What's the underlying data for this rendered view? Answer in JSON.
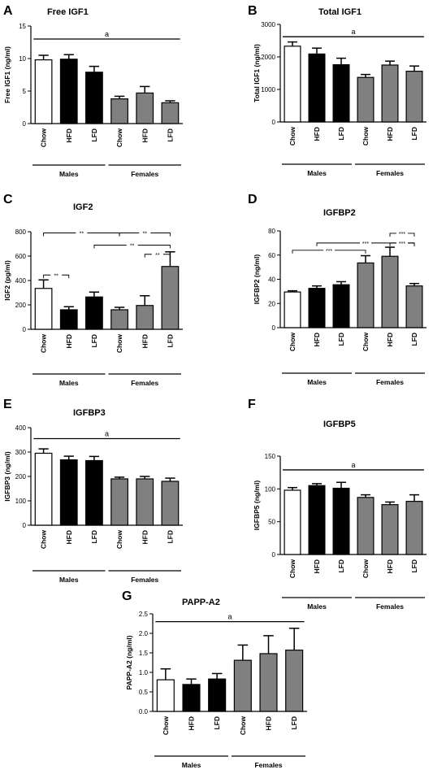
{
  "chart_data": [
    {
      "type": "bar",
      "panel": "A",
      "title": "Free IGF1",
      "ylabel": "Free IGF1 (ng/ml)",
      "categories": [
        "Chow",
        "HFD",
        "LFD",
        "Chow",
        "HFD",
        "LFD"
      ],
      "groups": [
        {
          "label": "Males",
          "indices": [
            0,
            1,
            2
          ]
        },
        {
          "label": "Females",
          "indices": [
            3,
            4,
            5
          ]
        }
      ],
      "values": [
        9.8,
        9.9,
        7.9,
        3.8,
        4.7,
        3.2
      ],
      "errors": [
        0.7,
        0.7,
        0.9,
        0.4,
        1.0,
        0.3
      ],
      "fills": [
        "#ffffff",
        "#000000",
        "#000000",
        "#808080",
        "#808080",
        "#808080"
      ],
      "ylim": [
        0,
        15
      ],
      "yticks": [
        0,
        5,
        10,
        15
      ],
      "significance": [
        {
          "from": 0,
          "to": 5,
          "y": 13.0,
          "label": "a",
          "style": "line"
        }
      ]
    },
    {
      "type": "bar",
      "panel": "B",
      "title": "Total IGF1",
      "ylabel": "Total IGF1 (ng/ml)",
      "categories": [
        "Chow",
        "HFD",
        "LFD",
        "Chow",
        "HFD",
        "LFD"
      ],
      "groups": [
        {
          "label": "Males",
          "indices": [
            0,
            1,
            2
          ]
        },
        {
          "label": "Females",
          "indices": [
            3,
            4,
            5
          ]
        }
      ],
      "values": [
        2330,
        2090,
        1760,
        1370,
        1750,
        1560
      ],
      "errors": [
        130,
        180,
        200,
        90,
        120,
        160
      ],
      "fills": [
        "#ffffff",
        "#000000",
        "#000000",
        "#808080",
        "#808080",
        "#808080"
      ],
      "ylim": [
        0,
        3000
      ],
      "yticks": [
        0,
        1000,
        2000,
        3000
      ],
      "significance": [
        {
          "from": 0,
          "to": 5,
          "y": 2620,
          "label": "a",
          "style": "line"
        }
      ]
    },
    {
      "type": "bar",
      "panel": "C",
      "title": "IGF2",
      "ylabel": "IGF2 (pg/ml)",
      "categories": [
        "Chow",
        "HFD",
        "LFD",
        "Chow",
        "HFD",
        "LFD"
      ],
      "groups": [
        {
          "label": "Males",
          "indices": [
            0,
            1,
            2
          ]
        },
        {
          "label": "Females",
          "indices": [
            3,
            4,
            5
          ]
        }
      ],
      "values": [
        335,
        160,
        265,
        160,
        195,
        515
      ],
      "errors": [
        70,
        25,
        40,
        20,
        80,
        120
      ],
      "fills": [
        "#ffffff",
        "#000000",
        "#000000",
        "#808080",
        "#808080",
        "#808080"
      ],
      "ylim": [
        0,
        800
      ],
      "yticks": [
        0,
        200,
        400,
        600,
        800
      ],
      "significance": [
        {
          "from": 0,
          "to": 3,
          "y": 790,
          "label": "**",
          "style": "bracket"
        },
        {
          "from": 3,
          "to": 5,
          "y": 790,
          "label": "**",
          "style": "bracket"
        },
        {
          "from": 2,
          "to": 5,
          "y": 690,
          "label": "**",
          "style": "bracket"
        },
        {
          "from": 4,
          "to": 5,
          "y": 615,
          "label": "**",
          "style": "bracket"
        },
        {
          "from": 0,
          "to": 1,
          "y": 445,
          "label": "**",
          "style": "bracket"
        }
      ]
    },
    {
      "type": "bar",
      "panel": "D",
      "title": "IGFBP2",
      "ylabel": "IGFBP2 (ng/ml)",
      "categories": [
        "Chow",
        "HFD",
        "LFD",
        "Chow",
        "HFD",
        "LFD"
      ],
      "groups": [
        {
          "label": "Males",
          "indices": [
            0,
            1,
            2
          ]
        },
        {
          "label": "Females",
          "indices": [
            3,
            4,
            5
          ]
        }
      ],
      "values": [
        29.5,
        32.5,
        35.5,
        53.5,
        59,
        34.5
      ],
      "errors": [
        1.0,
        2.0,
        2.5,
        6.0,
        7.5,
        2.0
      ],
      "fills": [
        "#ffffff",
        "#000000",
        "#000000",
        "#808080",
        "#808080",
        "#808080"
      ],
      "ylim": [
        0,
        80
      ],
      "yticks": [
        0,
        20,
        40,
        60,
        80
      ],
      "significance": [
        {
          "from": 4,
          "to": 5,
          "y": 78,
          "label": "***",
          "style": "bracket"
        },
        {
          "from": 1,
          "to": 5,
          "y": 70,
          "label": "***",
          "style": "bracket"
        },
        {
          "from": 4,
          "to": 5,
          "y": 70,
          "label": "***",
          "style": "bracket"
        },
        {
          "from": 0,
          "to": 3,
          "y": 64,
          "label": "***",
          "style": "bracket"
        }
      ]
    },
    {
      "type": "bar",
      "panel": "E",
      "title": "IGFBP3",
      "ylabel": "IGFBP3 (ng/ml)",
      "categories": [
        "Chow",
        "HFD",
        "LFD",
        "Chow",
        "HFD",
        "LFD"
      ],
      "groups": [
        {
          "label": "Males",
          "indices": [
            0,
            1,
            2
          ]
        },
        {
          "label": "Females",
          "indices": [
            3,
            4,
            5
          ]
        }
      ],
      "values": [
        295,
        268,
        265,
        190,
        190,
        180
      ],
      "errors": [
        18,
        15,
        17,
        7,
        10,
        13
      ],
      "fills": [
        "#ffffff",
        "#000000",
        "#000000",
        "#808080",
        "#808080",
        "#808080"
      ],
      "ylim": [
        0,
        400
      ],
      "yticks": [
        0,
        100,
        200,
        300,
        400
      ],
      "significance": [
        {
          "from": 0,
          "to": 5,
          "y": 355,
          "label": "a",
          "style": "line"
        }
      ]
    },
    {
      "type": "bar",
      "panel": "F",
      "title": "IGFBP5",
      "ylabel": "IGFBP5 (ng/ml)",
      "categories": [
        "Chow",
        "HFD",
        "LFD",
        "Chow",
        "HFD",
        "LFD"
      ],
      "groups": [
        {
          "label": "Males",
          "indices": [
            0,
            1,
            2
          ]
        },
        {
          "label": "Females",
          "indices": [
            3,
            4,
            5
          ]
        }
      ],
      "values": [
        98,
        105,
        101,
        87,
        76,
        81
      ],
      "errors": [
        4,
        3,
        9,
        4,
        4,
        10
      ],
      "fills": [
        "#ffffff",
        "#000000",
        "#000000",
        "#808080",
        "#808080",
        "#808080"
      ],
      "ylim": [
        0,
        150
      ],
      "yticks": [
        0,
        50,
        100,
        150
      ],
      "significance": [
        {
          "from": 0,
          "to": 5,
          "y": 129,
          "label": "a",
          "style": "line"
        }
      ]
    },
    {
      "type": "bar",
      "panel": "G",
      "title": "PAPP-A2",
      "ylabel": "PAPP-A2 (ng/ml)",
      "categories": [
        "Chow",
        "HFD",
        "LFD",
        "Chow",
        "HFD",
        "LFD"
      ],
      "groups": [
        {
          "label": "Males",
          "indices": [
            0,
            1,
            2
          ]
        },
        {
          "label": "Females",
          "indices": [
            3,
            4,
            5
          ]
        }
      ],
      "values": [
        0.81,
        0.69,
        0.83,
        1.31,
        1.48,
        1.57
      ],
      "errors": [
        0.28,
        0.14,
        0.14,
        0.39,
        0.46,
        0.56
      ],
      "fills": [
        "#ffffff",
        "#000000",
        "#000000",
        "#808080",
        "#808080",
        "#808080"
      ],
      "ylim": [
        0,
        2.5
      ],
      "yticks": [
        0,
        0.5,
        1.0,
        1.5,
        2.0,
        2.5
      ],
      "ytick_labels": [
        "0.0",
        "0.5",
        "1.0",
        "1.5",
        "2.0",
        "2.5"
      ],
      "significance": [
        {
          "from": 0,
          "to": 5,
          "y": 2.3,
          "label": "a",
          "style": "line"
        }
      ]
    }
  ]
}
